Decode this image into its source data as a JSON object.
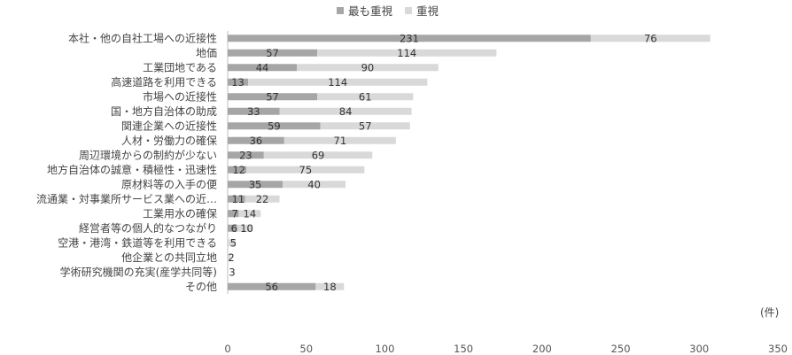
{
  "chart_data": {
    "type": "bar",
    "orientation": "horizontal",
    "stacked": true,
    "categories": [
      "本社・他の自社工場への近接性",
      "地価",
      "工業団地である",
      "高速道路を利用できる",
      "市場への近接性",
      "国・地方自治体の助成",
      "関連企業への近接性",
      "人材・労働力の確保",
      "周辺環境からの制約が少ない",
      "地方自治体の誠意・積極性・迅速性",
      "原材料等の入手の便",
      "流通業・対事業所サービス業への近…",
      "工業用水の確保",
      "経営者等の個人的なつながり",
      "空港・港湾・鉄道等を利用できる",
      "他企業との共同立地",
      "学術研究機関の充実(産学共同等)",
      "その他"
    ],
    "series": [
      {
        "name": "最も重視",
        "color": "#a6a6a6",
        "values": [
          231,
          57,
          44,
          13,
          57,
          33,
          59,
          36,
          23,
          12,
          35,
          11,
          7,
          6,
          0,
          0,
          0,
          56
        ],
        "labels": [
          "231",
          "57",
          "44",
          "13",
          "57",
          "33",
          "59",
          "36",
          "23",
          "12",
          "35",
          "11",
          "7",
          "6",
          "",
          "",
          "",
          "56"
        ]
      },
      {
        "name": "重視",
        "color": "#d9d9d9",
        "values": [
          76,
          114,
          90,
          114,
          61,
          84,
          57,
          71,
          69,
          75,
          40,
          22,
          14,
          10,
          5,
          2,
          0,
          18
        ],
        "labels": [
          "76",
          "114",
          "90",
          "114",
          "61",
          "84",
          "57",
          "71",
          "69",
          "75",
          "40",
          "22",
          "14",
          "10",
          "5",
          "2",
          "",
          "18"
        ]
      }
    ],
    "extra_labels": {
      "16": "3"
    },
    "xlim": [
      0,
      350
    ],
    "xticks": [
      0,
      50,
      100,
      150,
      200,
      250,
      300,
      350
    ],
    "unit_label": "(件)",
    "legend_position": "top",
    "grid": false
  }
}
